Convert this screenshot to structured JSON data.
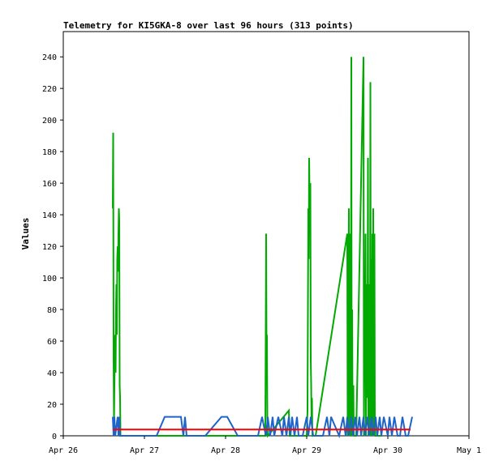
{
  "chart_data": {
    "type": "line",
    "title": "Telemetry for KI5GKA-8 over last 96 hours (313 points)",
    "xlabel": "",
    "ylabel": "Values",
    "x_unit": "day",
    "xlim": [
      0,
      5
    ],
    "ylim": [
      0,
      256
    ],
    "x_ticks": [
      {
        "value": 0,
        "label": "Apr 26"
      },
      {
        "value": 1,
        "label": "Apr 27"
      },
      {
        "value": 2,
        "label": "Apr 28"
      },
      {
        "value": 3,
        "label": "Apr 29"
      },
      {
        "value": 4,
        "label": "Apr 30"
      },
      {
        "value": 5,
        "label": "May 1"
      }
    ],
    "y_ticks": [
      0,
      20,
      40,
      60,
      80,
      100,
      120,
      140,
      160,
      180,
      200,
      220,
      240
    ],
    "grid": false,
    "legend": "none",
    "series": [
      {
        "color": "#00aa00",
        "x": [
          0.61,
          0.615,
          0.62,
          0.625,
          0.63,
          0.635,
          0.64,
          0.645,
          0.65,
          0.655,
          0.66,
          0.665,
          0.67,
          0.675,
          0.68,
          0.685,
          0.69,
          0.695,
          0.7,
          0.705,
          0.71,
          0.715,
          0.72,
          0.725,
          0.73,
          0.735,
          0.74,
          0.745,
          0.75,
          0.755,
          2.49,
          2.495,
          2.5,
          2.505,
          2.51,
          2.515,
          2.52,
          2.78,
          2.785,
          2.79,
          3.0,
          3.01,
          3.02,
          3.025,
          3.03,
          3.035,
          3.04,
          3.045,
          3.05,
          3.055,
          3.06,
          3.065,
          3.07,
          3.08,
          3.09,
          3.1,
          3.11,
          3.5,
          3.505,
          3.51,
          3.515,
          3.52,
          3.525,
          3.53,
          3.535,
          3.54,
          3.545,
          3.55,
          3.555,
          3.56,
          3.565,
          3.57,
          3.575,
          3.58,
          3.585,
          3.59,
          3.595,
          3.6,
          3.605,
          3.61,
          3.7,
          3.705,
          3.71,
          3.715,
          3.72,
          3.725,
          3.73,
          3.735,
          3.74,
          3.745,
          3.75,
          3.755,
          3.76,
          3.765,
          3.77,
          3.775,
          3.78,
          3.785,
          3.79,
          3.795,
          3.8,
          3.805,
          3.81,
          3.815,
          3.82,
          3.825,
          3.83,
          3.835,
          3.84,
          3.845,
          3.85,
          3.855,
          3.86,
          3.865,
          3.87,
          3.875,
          3.88,
          3.885,
          3.89,
          3.895,
          3.9,
          3.905,
          3.91,
          3.915,
          3.92,
          3.925
        ],
        "y": [
          144,
          192,
          48,
          8,
          32,
          48,
          64,
          40,
          80,
          96,
          64,
          112,
          120,
          104,
          128,
          144,
          136,
          32,
          24,
          0,
          0,
          0,
          0,
          0,
          0,
          0,
          0,
          0,
          0,
          0,
          0,
          64,
          128,
          48,
          64,
          8,
          0,
          16,
          8,
          0,
          0,
          16,
          144,
          112,
          176,
          152,
          128,
          160,
          48,
          32,
          8,
          24,
          0,
          0,
          0,
          0,
          0,
          128,
          0,
          112,
          96,
          144,
          0,
          32,
          0,
          128,
          0,
          240,
          0,
          80,
          16,
          0,
          32,
          0,
          0,
          0,
          0,
          0,
          0,
          0,
          240,
          0,
          48,
          96,
          64,
          128,
          0,
          96,
          24,
          80,
          64,
          176,
          0,
          80,
          48,
          96,
          0,
          224,
          32,
          0,
          112,
          0,
          128,
          32,
          144,
          0,
          48,
          128,
          8,
          0,
          0,
          0,
          0,
          0,
          0,
          0,
          0,
          0,
          0,
          0,
          0,
          0,
          0,
          0,
          0,
          0
        ]
      },
      {
        "color": "#1e64c8",
        "x": [
          0.61,
          0.62,
          0.63,
          0.64,
          0.65,
          0.66,
          0.67,
          0.68,
          0.69,
          0.7,
          0.71,
          1.15,
          1.25,
          1.45,
          1.48,
          1.5,
          1.52,
          1.75,
          1.95,
          2.02,
          2.15,
          2.4,
          2.45,
          2.48,
          2.5,
          2.52,
          2.55,
          2.58,
          2.6,
          2.65,
          2.7,
          2.72,
          2.75,
          2.78,
          2.8,
          2.82,
          2.85,
          2.88,
          2.9,
          2.95,
          3.0,
          3.02,
          3.05,
          3.08,
          3.2,
          3.25,
          3.28,
          3.3,
          3.4,
          3.45,
          3.48,
          3.5,
          3.52,
          3.55,
          3.57,
          3.6,
          3.62,
          3.65,
          3.67,
          3.7,
          3.72,
          3.75,
          3.77,
          3.8,
          3.82,
          3.85,
          3.87,
          3.9,
          3.92,
          3.95,
          4.0,
          4.02,
          4.05,
          4.08,
          4.12,
          4.15,
          4.18,
          4.22,
          4.25,
          4.3
        ],
        "y": [
          12,
          0,
          12,
          0,
          4,
          8,
          12,
          0,
          12,
          0,
          0,
          0,
          12,
          12,
          0,
          12,
          0,
          0,
          12,
          12,
          0,
          0,
          12,
          4,
          0,
          12,
          0,
          12,
          0,
          12,
          0,
          12,
          0,
          12,
          0,
          12,
          0,
          12,
          0,
          0,
          12,
          0,
          12,
          0,
          0,
          12,
          0,
          12,
          0,
          12,
          0,
          12,
          0,
          12,
          0,
          12,
          0,
          12,
          0,
          12,
          0,
          12,
          0,
          12,
          0,
          12,
          0,
          12,
          0,
          12,
          0,
          12,
          0,
          12,
          0,
          0,
          12,
          0,
          0,
          12
        ]
      },
      {
        "color": "#ff0000",
        "x": [
          0.61,
          4.28
        ],
        "y": [
          4,
          4
        ]
      }
    ]
  }
}
